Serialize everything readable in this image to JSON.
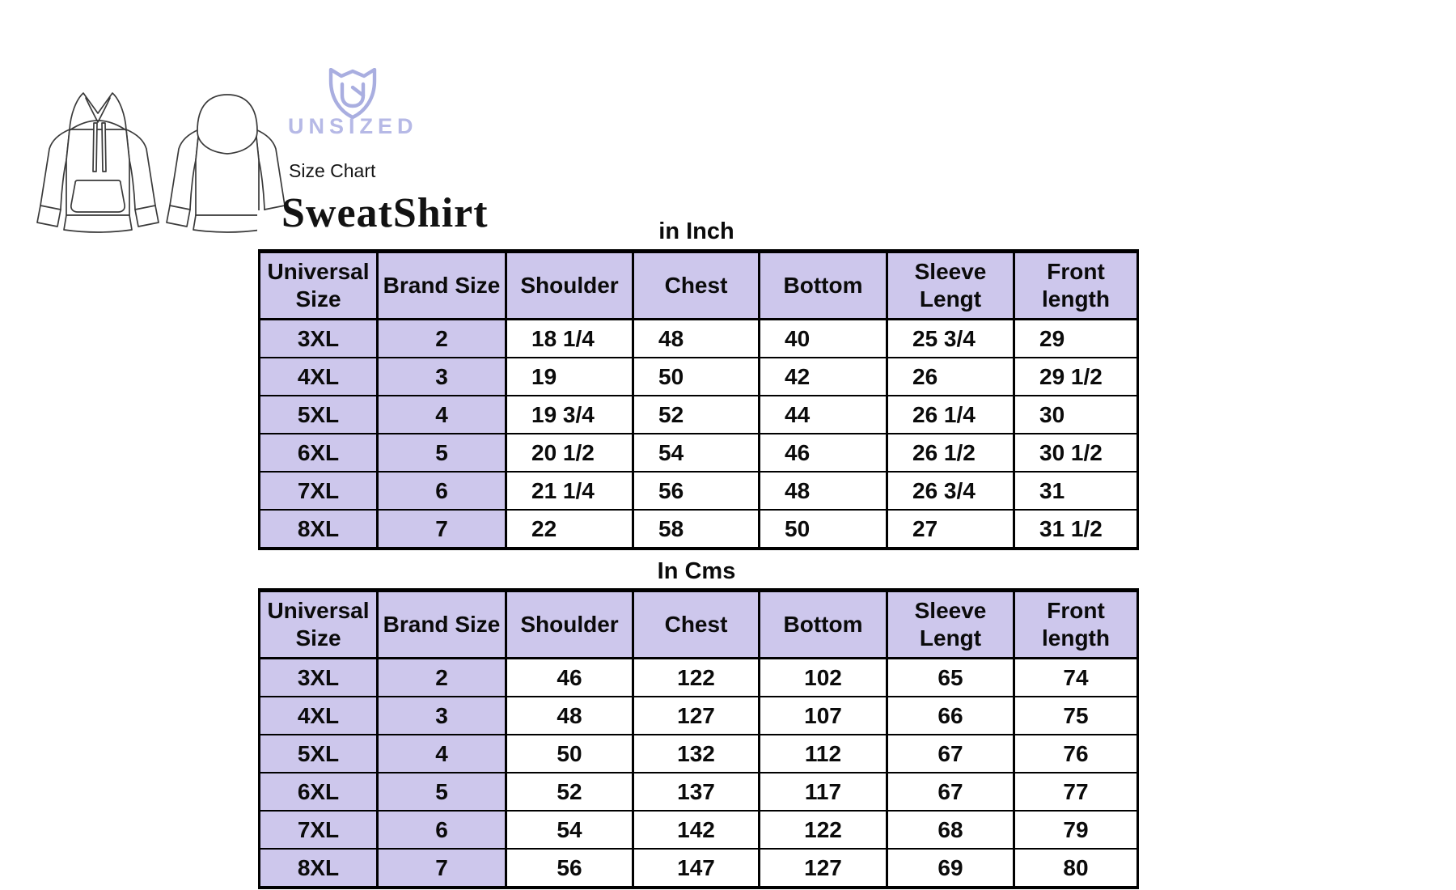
{
  "brand": {
    "wordmark": "UNSIZED"
  },
  "header": {
    "subtitle": "Size Chart",
    "title": "SweatShirt"
  },
  "size_chart": {
    "tables": [
      {
        "unit_label": "in Inch",
        "columns": [
          "Universal\nSize",
          "Brand Size",
          "Shoulder",
          "Chest",
          "Bottom",
          "Sleeve\nLengt",
          "Front\nlength"
        ],
        "rows": [
          [
            "3XL",
            "2",
            "18 1/4",
            "48",
            "40",
            "25 3/4",
            "29"
          ],
          [
            "4XL",
            "3",
            "19",
            "50",
            "42",
            "26",
            "29 1/2"
          ],
          [
            "5XL",
            "4",
            "19 3/4",
            "52",
            "44",
            "26 1/4",
            "30"
          ],
          [
            "6XL",
            "5",
            "20 1/2",
            "54",
            "46",
            "26 1/2",
            "30 1/2"
          ],
          [
            "7XL",
            "6",
            "21 1/4",
            "56",
            "48",
            "26 3/4",
            "31"
          ],
          [
            "8XL",
            "7",
            "22",
            "58",
            "50",
            "27",
            "31 1/2"
          ]
        ]
      },
      {
        "unit_label": "In Cms",
        "columns": [
          "Universal\nSize",
          "Brand Size",
          "Shoulder",
          "Chest",
          "Bottom",
          "Sleeve\nLengt",
          "Front\nlength"
        ],
        "rows": [
          [
            "3XL",
            "2",
            "46",
            "122",
            "102",
            "65",
            "74"
          ],
          [
            "4XL",
            "3",
            "48",
            "127",
            "107",
            "66",
            "75"
          ],
          [
            "5XL",
            "4",
            "50",
            "132",
            "112",
            "67",
            "76"
          ],
          [
            "6XL",
            "5",
            "52",
            "137",
            "117",
            "67",
            "77"
          ],
          [
            "7XL",
            "6",
            "54",
            "142",
            "122",
            "68",
            "79"
          ],
          [
            "8XL",
            "7",
            "56",
            "147",
            "127",
            "69",
            "80"
          ]
        ]
      }
    ]
  },
  "colors": {
    "header_fill": "#cdc7ec",
    "border": "#000000",
    "logo_lavender": "#a9aee0",
    "wordmark_lavender": "#b6b9e6",
    "line_art": "#3a3a3a"
  }
}
